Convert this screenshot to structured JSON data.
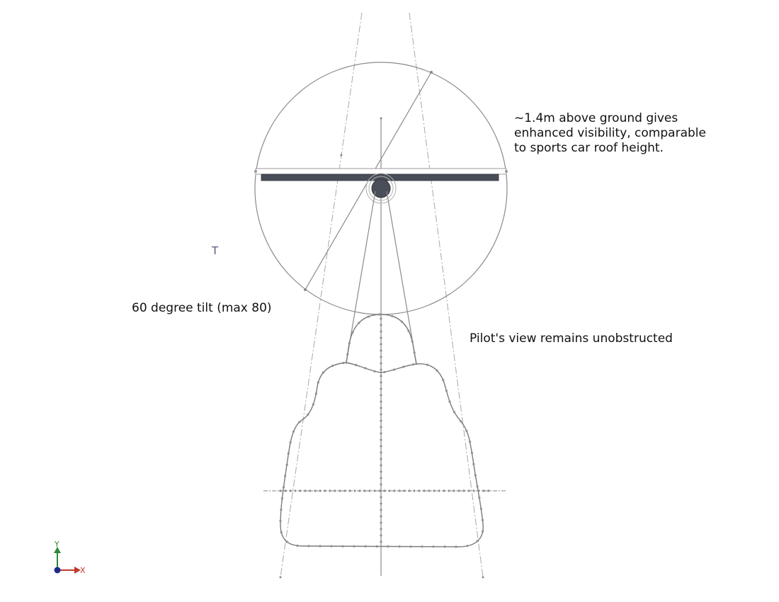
{
  "annotations": {
    "height_note": "~1.4m above ground gives\nenhanced visibility, comparable\nto sports car roof height.",
    "tilt_note": "60 degree tilt (max 80)",
    "view_note": "Pilot's view remains unobstructed",
    "dimension_marker": "T"
  },
  "triad": {
    "y_label": "Y",
    "x_label": "X",
    "y_color": "#2e8b3a",
    "x_color": "#c0392b",
    "origin_color": "#1c2a8a"
  },
  "colors": {
    "line": "#8a8a8a",
    "construction": "#a0a0a0",
    "rotor_plate": "#4a4e59",
    "hub": "#4a4e59"
  }
}
